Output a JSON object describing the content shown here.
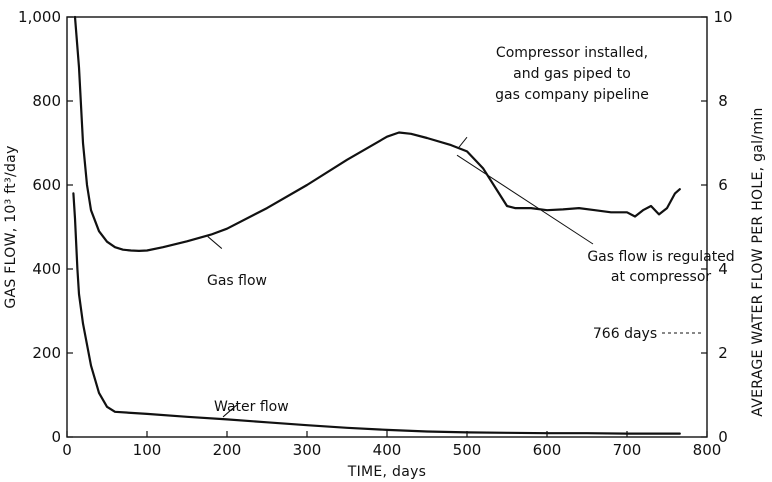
{
  "chart_data": {
    "type": "line",
    "xlabel": "TIME, days",
    "ylabel": "GAS FLOW, 10³ ft³/day",
    "ylabel_right": "AVERAGE WATER FLOW PER HOLE, gal/min",
    "xlim": [
      0,
      800
    ],
    "ylim": [
      0,
      1000
    ],
    "ylim_right": [
      0,
      10
    ],
    "x_ticks": [
      "0",
      "100",
      "200",
      "300",
      "400",
      "500",
      "600",
      "700",
      "800"
    ],
    "y_ticks": [
      "0",
      "200",
      "400",
      "600",
      "800",
      "1,000"
    ],
    "y_ticks_right": [
      "0",
      "2",
      "4",
      "6",
      "8",
      "10"
    ],
    "grid": false,
    "series": [
      {
        "name": "Gas flow",
        "axis": "left",
        "x": [
          10,
          15,
          20,
          25,
          30,
          40,
          50,
          60,
          70,
          80,
          90,
          100,
          120,
          150,
          180,
          200,
          250,
          300,
          350,
          400,
          415,
          430,
          450,
          480,
          500,
          520,
          540,
          550,
          560,
          580,
          600,
          620,
          640,
          660,
          680,
          700,
          710,
          720,
          730,
          740,
          750,
          760,
          766
        ],
        "values": [
          1000,
          880,
          700,
          600,
          540,
          490,
          465,
          452,
          446,
          444,
          443,
          444,
          452,
          466,
          482,
          496,
          545,
          600,
          660,
          715,
          725,
          722,
          712,
          695,
          680,
          640,
          580,
          550,
          545,
          545,
          540,
          542,
          545,
          540,
          535,
          535,
          525,
          540,
          550,
          530,
          545,
          580,
          590
        ]
      },
      {
        "name": "Water flow",
        "axis": "right",
        "x": [
          8,
          10,
          13,
          15,
          20,
          25,
          30,
          40,
          50,
          60,
          100,
          150,
          200,
          250,
          300,
          350,
          400,
          450,
          500,
          550,
          600,
          650,
          700,
          750,
          766
        ],
        "values": [
          5.8,
          5.2,
          4.0,
          3.4,
          2.7,
          2.2,
          1.7,
          1.05,
          0.72,
          0.6,
          0.55,
          0.48,
          0.42,
          0.35,
          0.28,
          0.22,
          0.17,
          0.13,
          0.11,
          0.1,
          0.09,
          0.09,
          0.08,
          0.08,
          0.08
        ]
      }
    ],
    "annotations": {
      "gas_label": "Gas flow",
      "water_label": "Water flow",
      "compressor_line1": "Compressor installed,",
      "compressor_line2": "and gas piped to",
      "compressor_line3": "gas company pipeline",
      "regulated_line1": "Gas flow is regulated",
      "regulated_line2": "at compressor",
      "days_marker": "766 days"
    }
  }
}
